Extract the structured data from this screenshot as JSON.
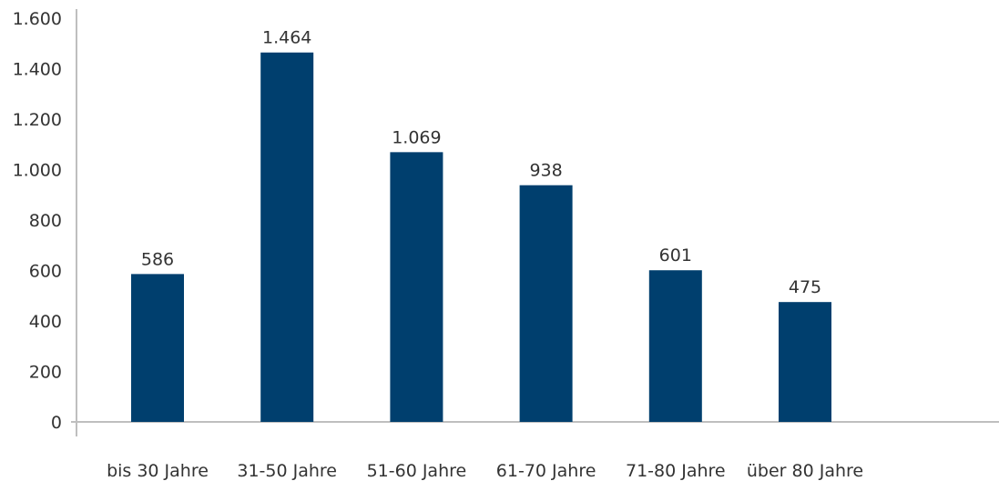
{
  "chart_data": {
    "type": "bar",
    "title": "",
    "xlabel": "",
    "ylabel": "",
    "categories": [
      "bis 30 Jahre",
      "31-50 Jahre",
      "51-60 Jahre",
      "61-70 Jahre",
      "71-80 Jahre",
      "über 80 Jahre"
    ],
    "values": [
      586,
      1464,
      1069,
      938,
      601,
      475
    ],
    "data_labels": [
      "586",
      "1.464",
      "1.069",
      "938",
      "601",
      "475"
    ],
    "ylim": [
      0,
      1600
    ],
    "yticks": [
      0,
      200,
      400,
      600,
      800,
      1000,
      1200,
      1400,
      1600
    ],
    "ytick_labels": [
      "0",
      "200",
      "400",
      "600",
      "800",
      "1.000",
      "1.200",
      "1.400",
      "1.600"
    ],
    "grid": false,
    "legend": "none",
    "colors": {
      "bar": "#003f6e",
      "axis": "#bfbfbf",
      "text": "#333333"
    }
  }
}
